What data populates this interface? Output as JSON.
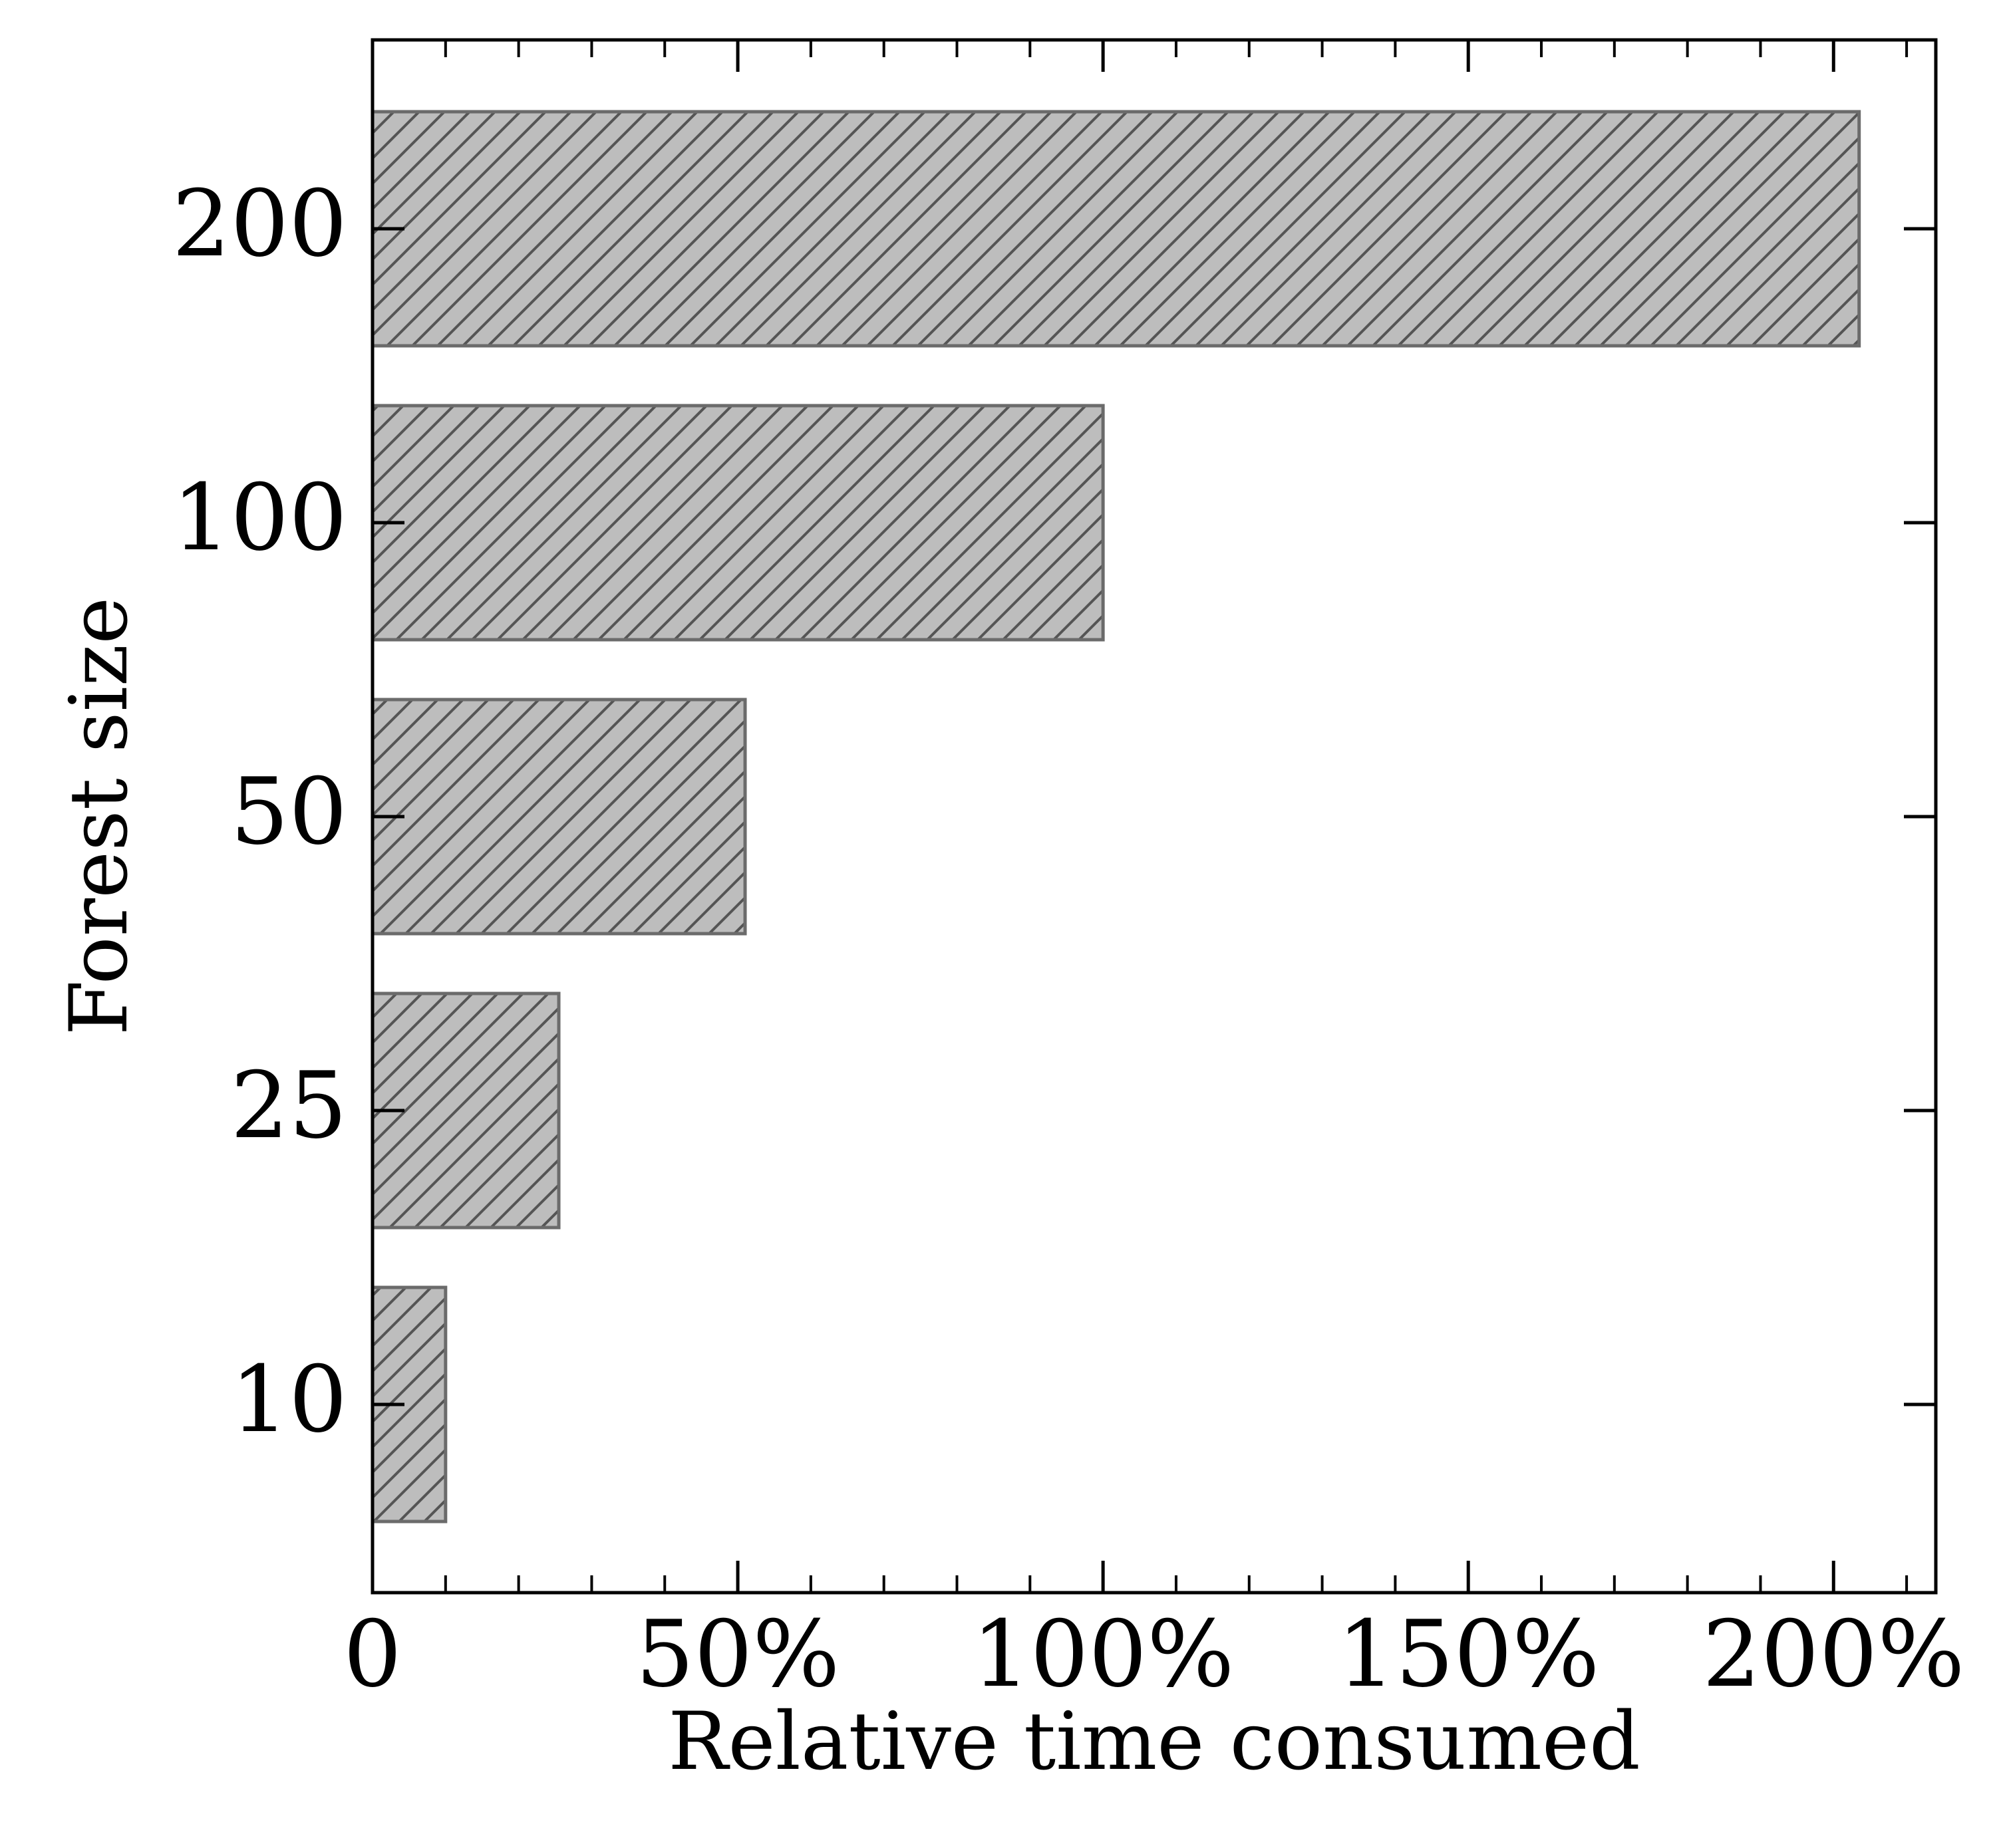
{
  "chart_data": {
    "type": "bar",
    "orientation": "horizontal",
    "categories": [
      "10",
      "25",
      "50",
      "100",
      "200"
    ],
    "values": [
      10,
      25.5,
      51,
      100,
      203.5
    ],
    "value_unit": "%",
    "xlabel": "Relative time consumed",
    "ylabel": "Forest size",
    "xlim": [
      0,
      214
    ],
    "xticks": [
      0,
      50,
      100,
      150,
      200
    ],
    "xtick_labels": [
      "0",
      "50%",
      "100%",
      "150%",
      "200%"
    ],
    "minor_xtick_step": 10,
    "grid": false,
    "legend": "none",
    "bar_fill": "#bdbdbd",
    "bar_edge": "#6b6b6b",
    "hatch": "diagonal"
  }
}
